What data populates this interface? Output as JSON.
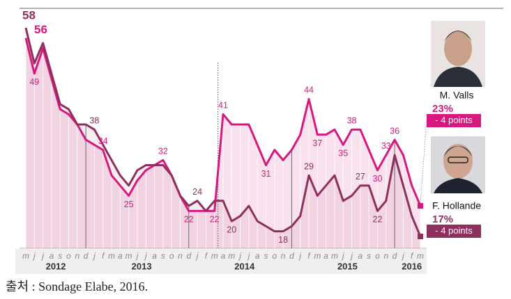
{
  "chart_data": {
    "type": "line",
    "categories": [
      "m",
      "j",
      "j",
      "a",
      "s",
      "o",
      "n",
      "d",
      "j",
      "f",
      "m",
      "a",
      "m",
      "j",
      "j",
      "a",
      "s",
      "o",
      "n",
      "d",
      "j",
      "f",
      "m",
      "a",
      "m",
      "j",
      "j",
      "a",
      "s",
      "o",
      "n",
      "d",
      "j",
      "f",
      "m",
      "a",
      "m",
      "j",
      "j",
      "a",
      "s",
      "o",
      "n",
      "d",
      "j",
      "f",
      "m"
    ],
    "years": [
      "2012",
      "2013",
      "2014",
      "2015",
      "2016"
    ],
    "series": [
      {
        "name": "M. Valls",
        "color": "#d8187f",
        "values": [
          56,
          49,
          54,
          48,
          42,
          41,
          39,
          36,
          35,
          34,
          29,
          27,
          25,
          28,
          30,
          31,
          32,
          29,
          25,
          22,
          22,
          22,
          22,
          41,
          39,
          39,
          39,
          35,
          31,
          34,
          32,
          34,
          37,
          44,
          37,
          37,
          38,
          35,
          38,
          38,
          34,
          30,
          33,
          36,
          33,
          27,
          23
        ],
        "value_labels": [
          "56",
          "49",
          null,
          null,
          null,
          null,
          null,
          null,
          null,
          "34",
          null,
          null,
          "25",
          null,
          null,
          null,
          "32",
          null,
          null,
          "22",
          null,
          null,
          "22",
          "41",
          null,
          null,
          null,
          null,
          "31",
          null,
          null,
          null,
          null,
          "44",
          "37",
          null,
          null,
          "35",
          "38",
          null,
          null,
          "30",
          "33",
          "36",
          null,
          null,
          null
        ],
        "end_label": "23%",
        "change": "- 4 points"
      },
      {
        "name": "F. Hollande",
        "color": "#8e2f5e",
        "values": [
          58,
          51,
          55,
          49,
          43,
          42,
          39,
          39,
          38,
          35,
          32,
          29,
          27,
          30,
          31,
          31,
          31,
          29,
          25,
          23,
          24,
          22,
          24,
          24,
          20,
          21,
          23,
          20,
          19,
          18,
          18,
          19,
          21,
          29,
          25,
          27,
          29,
          24,
          25,
          27,
          27,
          22,
          24,
          33,
          27,
          21,
          17
        ],
        "value_labels": [
          "58",
          null,
          null,
          null,
          null,
          null,
          null,
          null,
          "38",
          null,
          null,
          null,
          null,
          null,
          null,
          null,
          null,
          null,
          null,
          null,
          "24",
          null,
          null,
          null,
          "20",
          null,
          null,
          null,
          null,
          null,
          "18",
          null,
          null,
          "29",
          null,
          null,
          null,
          null,
          null,
          "27",
          null,
          "22",
          null,
          null,
          null,
          null,
          null
        ],
        "end_label": "17%",
        "change": "- 4 points"
      }
    ]
  },
  "source": "출처 : Sondage Elabe, 2016."
}
